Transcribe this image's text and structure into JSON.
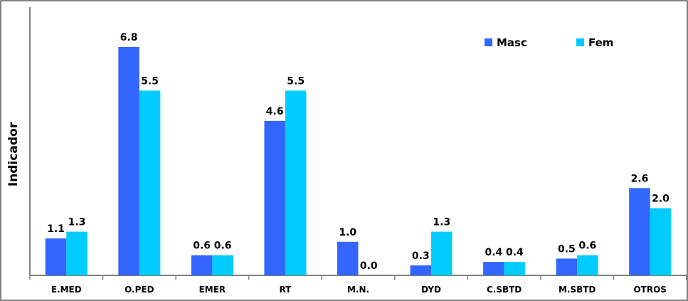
{
  "chart_data": {
    "type": "bar",
    "title": "",
    "xlabel": "",
    "ylabel": "Indicador",
    "categories": [
      "E.MED",
      "O.PED",
      "EMER",
      "RT",
      "M.N.",
      "DYD",
      "C.SBTD",
      "M.SBTD",
      "OTROS"
    ],
    "series": [
      {
        "name": "Masc",
        "values": [
          1.1,
          6.8,
          0.6,
          4.6,
          1.0,
          0.3,
          0.4,
          0.5,
          2.6
        ],
        "labels": [
          "1.1",
          "6.8",
          "0.6",
          "4.6",
          "1.0",
          "0.3",
          "0.4",
          "0.5",
          "2.6"
        ]
      },
      {
        "name": "Fem",
        "values": [
          1.3,
          5.5,
          0.6,
          5.5,
          0.0,
          1.3,
          0.4,
          0.6,
          2.0
        ],
        "labels": [
          "1.3",
          "5.5",
          "0.6",
          "5.5",
          "0.0",
          "1.3",
          "0.4",
          "0.6",
          "2.0"
        ]
      }
    ],
    "ylim": [
      0,
      6.8
    ],
    "grid": false,
    "legend_position": "top-right",
    "colors": {
      "Masc": "#3366ff",
      "Fem": "#00ccff",
      "axis": "#808080"
    }
  }
}
